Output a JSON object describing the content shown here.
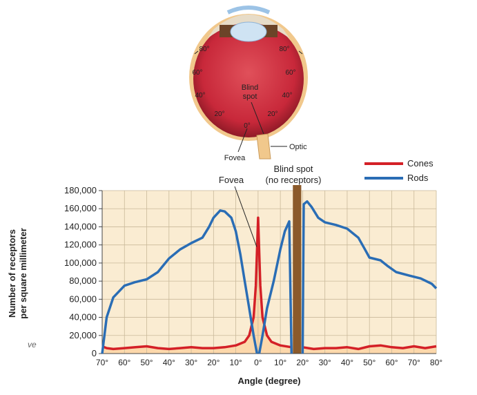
{
  "eye": {
    "left_labels": [
      "80°",
      "60°",
      "40°",
      "20°"
    ],
    "right_labels": [
      "80°",
      "60°",
      "40°",
      "20°"
    ],
    "center_label": "0°",
    "blind_spot_line1": "Blind",
    "blind_spot_line2": "spot",
    "fovea_label": "Fovea",
    "optic_label": "Optic"
  },
  "annotations": {
    "fovea": "Fovea",
    "blind_spot_line1": "Blind spot",
    "blind_spot_line2": "(no receptors)"
  },
  "crop_fragment": "ve",
  "colors": {
    "cones": "#d42027",
    "rods": "#2a6db5",
    "plot_bg": "#faecd2",
    "area_fill": "#fbd5a5",
    "blind_spot": "#8b5a2b"
  },
  "chart_data": {
    "type": "line",
    "title": "",
    "xlabel": "Angle (degree)",
    "ylabel_line1": "Number of receptors",
    "ylabel_line2": "per square millimeter",
    "xlim": [
      -70,
      80
    ],
    "ylim": [
      0,
      180000
    ],
    "x_ticks": [
      -70,
      -60,
      -50,
      -40,
      -30,
      -20,
      -10,
      0,
      10,
      20,
      30,
      40,
      50,
      60,
      70,
      80
    ],
    "x_tick_labels": [
      "70°",
      "60°",
      "50°",
      "40°",
      "30°",
      "20°",
      "10°",
      "0°",
      "10°",
      "20°",
      "30°",
      "40°",
      "50°",
      "60°",
      "70°",
      "80°"
    ],
    "y_ticks": [
      0,
      20000,
      40000,
      60000,
      80000,
      100000,
      120000,
      140000,
      160000,
      180000
    ],
    "y_tick_labels": [
      "0",
      "20,000",
      "40,000",
      "60,000",
      "80,000",
      "100,000",
      "120,000",
      "140,000",
      "160,000",
      "180,000"
    ],
    "grid": true,
    "legend_position": "top-right",
    "blind_spot_range": [
      15,
      20
    ],
    "series": [
      {
        "name": "Cones",
        "segments": [
          [
            [
              -70,
              8000
            ],
            [
              -68,
              6000
            ],
            [
              -65,
              5000
            ],
            [
              -60,
              6000
            ],
            [
              -55,
              7000
            ],
            [
              -50,
              8000
            ],
            [
              -45,
              6000
            ],
            [
              -40,
              5000
            ],
            [
              -35,
              6000
            ],
            [
              -30,
              7000
            ],
            [
              -25,
              6000
            ],
            [
              -20,
              6000
            ],
            [
              -15,
              7000
            ],
            [
              -10,
              9000
            ],
            [
              -6,
              13000
            ],
            [
              -4,
              20000
            ],
            [
              -2,
              40000
            ],
            [
              -1,
              75000
            ],
            [
              0,
              150000
            ],
            [
              1,
              75000
            ],
            [
              2,
              40000
            ],
            [
              4,
              20000
            ],
            [
              6,
              13000
            ],
            [
              10,
              9000
            ],
            [
              15,
              7000
            ]
          ],
          [
            [
              20,
              7000
            ],
            [
              25,
              5000
            ],
            [
              30,
              6000
            ],
            [
              35,
              6000
            ],
            [
              40,
              7000
            ],
            [
              45,
              5000
            ],
            [
              50,
              8000
            ],
            [
              55,
              9000
            ],
            [
              60,
              7000
            ],
            [
              65,
              6000
            ],
            [
              70,
              8000
            ],
            [
              75,
              6000
            ],
            [
              80,
              8000
            ]
          ]
        ]
      },
      {
        "name": "Rods",
        "segments": [
          [
            [
              -70,
              0
            ],
            [
              -68,
              40000
            ],
            [
              -65,
              62000
            ],
            [
              -60,
              75000
            ],
            [
              -55,
              79000
            ],
            [
              -50,
              82000
            ],
            [
              -45,
              90000
            ],
            [
              -40,
              105000
            ],
            [
              -35,
              115000
            ],
            [
              -30,
              122000
            ],
            [
              -25,
              128000
            ],
            [
              -22,
              140000
            ],
            [
              -20,
              150000
            ],
            [
              -17,
              158000
            ],
            [
              -15,
              157000
            ],
            [
              -12,
              150000
            ],
            [
              -10,
              135000
            ],
            [
              -8,
              110000
            ],
            [
              -6,
              80000
            ],
            [
              -4,
              50000
            ],
            [
              -2,
              20000
            ],
            [
              -0.5,
              0
            ]
          ],
          [
            [
              0.5,
              0
            ],
            [
              2,
              20000
            ],
            [
              4,
              50000
            ],
            [
              7,
              80000
            ],
            [
              10,
              115000
            ],
            [
              12,
              135000
            ],
            [
              14,
              146000
            ],
            [
              15,
              0
            ]
          ],
          [
            [
              20,
              0
            ],
            [
              20.5,
              165000
            ],
            [
              22,
              168000
            ],
            [
              24,
              162000
            ],
            [
              27,
              150000
            ],
            [
              30,
              145000
            ],
            [
              35,
              142000
            ],
            [
              40,
              138000
            ],
            [
              45,
              128000
            ],
            [
              48,
              115000
            ],
            [
              50,
              106000
            ],
            [
              55,
              103000
            ],
            [
              58,
              97000
            ],
            [
              62,
              90000
            ],
            [
              68,
              86000
            ],
            [
              73,
              83000
            ],
            [
              78,
              77000
            ],
            [
              80,
              72000
            ]
          ]
        ]
      }
    ]
  }
}
